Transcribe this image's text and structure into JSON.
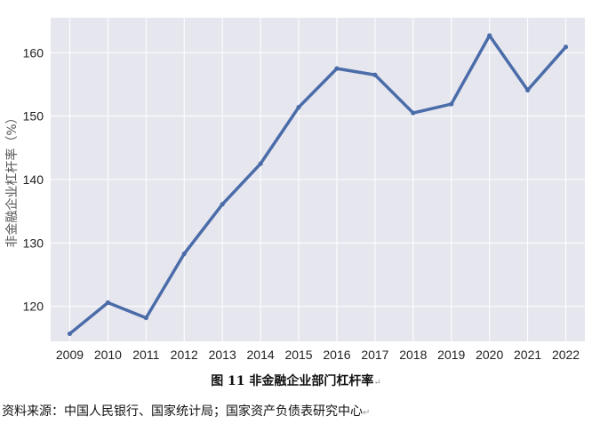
{
  "chart_data": {
    "type": "line",
    "title": "",
    "xlabel": "",
    "ylabel": "非金融企业杠杆率（%）",
    "x": [
      "2009",
      "2010",
      "2011",
      "2012",
      "2013",
      "2014",
      "2015",
      "2016",
      "2017",
      "2018",
      "2019",
      "2020",
      "2021",
      "2022"
    ],
    "series": [
      {
        "values": [
          115.7,
          120.6,
          118.2,
          128.3,
          136.1,
          142.5,
          151.4,
          157.5,
          156.5,
          150.5,
          151.9,
          162.7,
          154.1,
          160.9
        ]
      }
    ],
    "yticks": [
      120,
      130,
      140,
      150,
      160
    ],
    "ylim": [
      114.5,
      165.5
    ],
    "grid": true,
    "legend": "none",
    "colors": {
      "line": "#4a6ca8",
      "plot_background": "#e6e6ef",
      "grid": "#ffffff"
    }
  },
  "caption": {
    "text": "图  11 非金融企业部门杠杆率",
    "mark": "↵"
  },
  "source": {
    "text": "资料来源：中国人民银行、国家统计局；国家资产负债表研究中心",
    "mark": "↵"
  }
}
